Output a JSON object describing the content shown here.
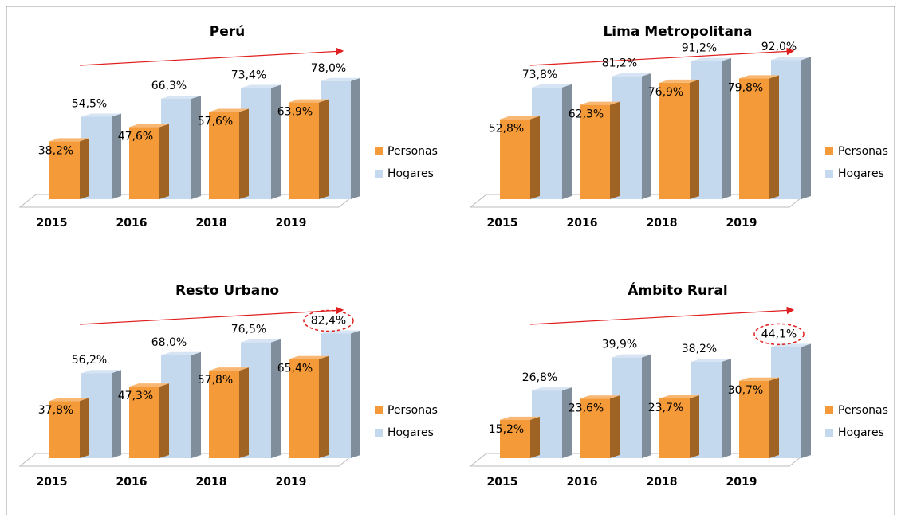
{
  "chart_data": [
    {
      "type": "bar3d",
      "title": "Perú",
      "categories": [
        "2015",
        "2016",
        "2018",
        "2019"
      ],
      "ylim": [
        0,
        100
      ],
      "series": [
        {
          "name": "Personas",
          "color": "#f59a38",
          "values": [
            38.2,
            47.6,
            57.6,
            63.9
          ],
          "value_labels": [
            "38,2%",
            "47,6%",
            "57,6%",
            "63,9%"
          ]
        },
        {
          "name": "Hogares",
          "color": "#c5d9ee",
          "values": [
            54.5,
            66.3,
            73.4,
            78.0
          ],
          "value_labels": [
            "54,5%",
            "66,3%",
            "73,4%",
            "78,0%"
          ]
        }
      ]
    },
    {
      "type": "bar3d",
      "title": "Lima Metropolitana",
      "categories": [
        "2015",
        "2016",
        "2018",
        "2019"
      ],
      "ylim": [
        0,
        100
      ],
      "series": [
        {
          "name": "Personas",
          "color": "#f59a38",
          "values": [
            52.8,
            62.3,
            76.9,
            79.8
          ],
          "value_labels": [
            "52,8%",
            "62,3%",
            "76,9%",
            "79,8%"
          ]
        },
        {
          "name": "Hogares",
          "color": "#c5d9ee",
          "values": [
            73.8,
            81.2,
            91.2,
            92.0
          ],
          "value_labels": [
            "73,8%",
            "81,2%",
            "91,2%",
            "92,0%"
          ]
        }
      ]
    },
    {
      "type": "bar3d",
      "title": "Resto Urbano",
      "categories": [
        "2015",
        "2016",
        "2018",
        "2019"
      ],
      "ylim": [
        0,
        100
      ],
      "series": [
        {
          "name": "Personas",
          "color": "#f59a38",
          "values": [
            37.8,
            47.3,
            57.8,
            65.4
          ],
          "value_labels": [
            "37,8%",
            "47,3%",
            "57,8%",
            "65,4%"
          ]
        },
        {
          "name": "Hogares",
          "color": "#c5d9ee",
          "values": [
            56.2,
            68.0,
            76.5,
            82.4
          ],
          "value_labels": [
            "56,2%",
            "68,0%",
            "76,5%",
            "82,4%"
          ],
          "highlight": 3
        }
      ]
    },
    {
      "type": "bar3d",
      "title": "Ámbito Rural",
      "categories": [
        "2015",
        "2016",
        "2018",
        "2019"
      ],
      "ylim": [
        0,
        60
      ],
      "series": [
        {
          "name": "Personas",
          "color": "#f59a38",
          "values": [
            15.2,
            23.6,
            23.7,
            30.7
          ],
          "value_labels": [
            "15,2%",
            "23,6%",
            "23,7%",
            "30,7%"
          ]
        },
        {
          "name": "Hogares",
          "color": "#c5d9ee",
          "values": [
            26.8,
            39.9,
            38.2,
            44.1
          ],
          "value_labels": [
            "26,8%",
            "39,9%",
            "38,2%",
            "44,1%"
          ],
          "highlight": 3
        }
      ]
    }
  ]
}
